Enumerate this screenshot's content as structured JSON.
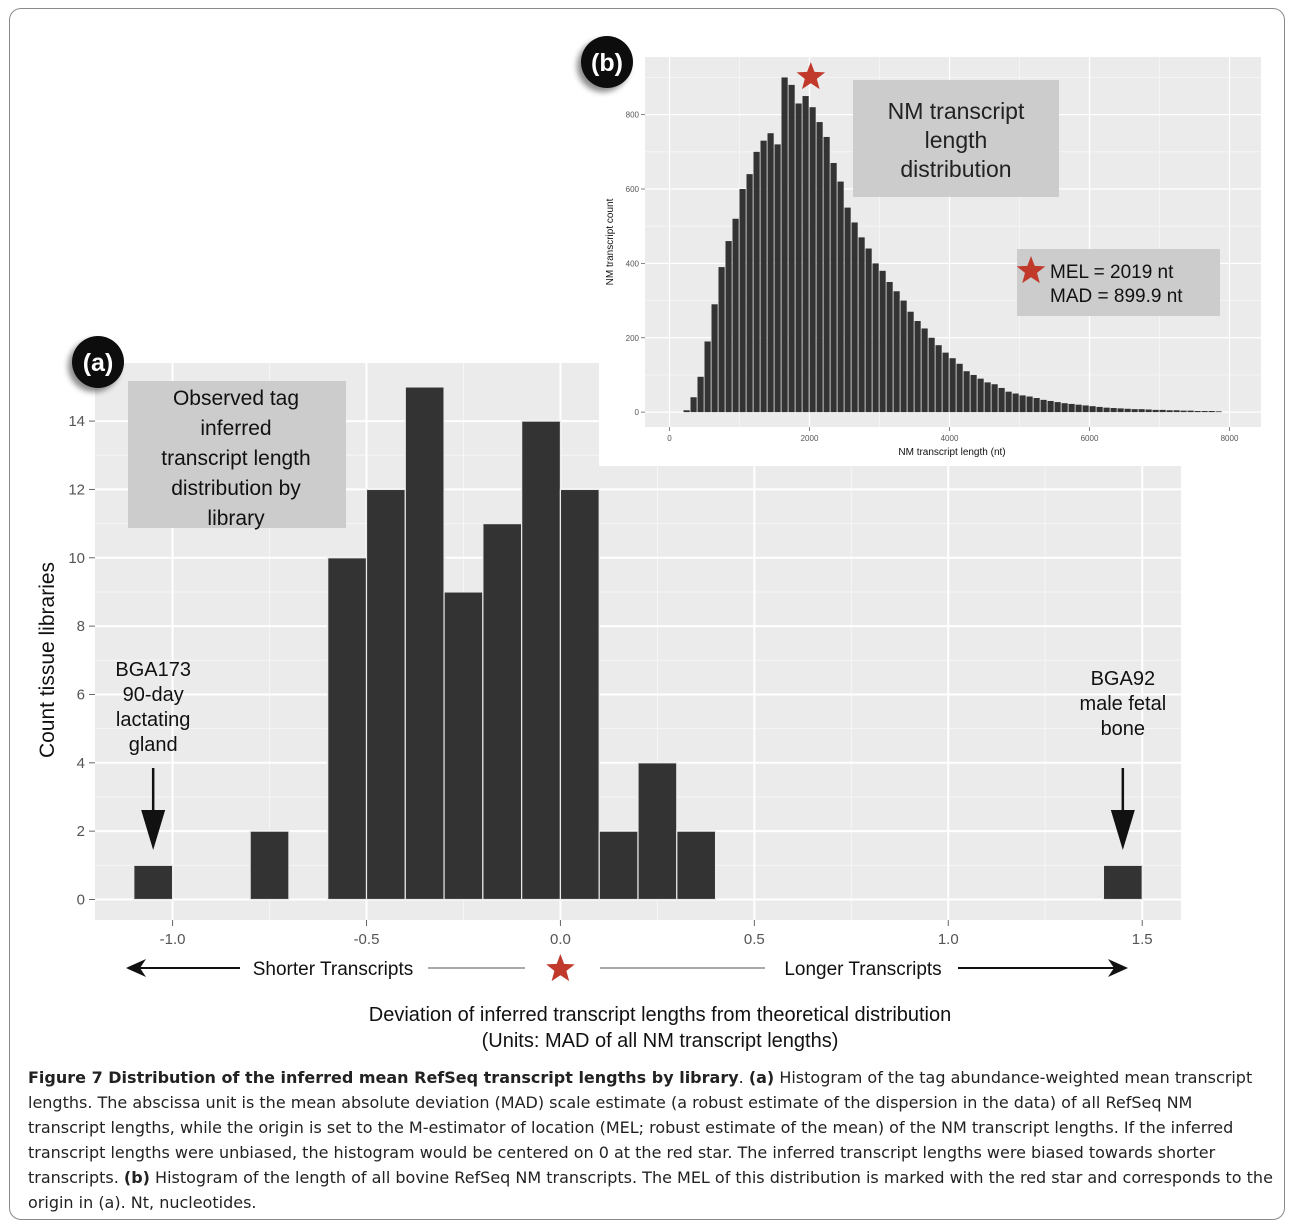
{
  "chart_data": [
    {
      "id": "a",
      "type": "bar",
      "panel_label": "(a)",
      "title": "Observed tag inferred transcript length distribution by library",
      "title_lines": [
        "Observed tag",
        "inferred",
        "transcript length",
        "distribution by",
        "library"
      ],
      "ylabel": "Count tissue libraries",
      "xlabel_lines": [
        "Deviation of inferred transcript lengths from theoretical distribution",
        "(Units: MAD of all NM transcript lengths)"
      ],
      "xlim": [
        -1.2,
        1.6
      ],
      "ylim": [
        -0.6,
        15.7
      ],
      "x_ticks": [
        -1.0,
        -0.5,
        0.0,
        0.5,
        1.0,
        1.5
      ],
      "x_tick_labels": [
        "-1.0",
        "-0.5",
        "0.0",
        "0.5",
        "1.0",
        "1.5"
      ],
      "y_ticks": [
        0,
        2,
        4,
        6,
        8,
        10,
        12,
        14
      ],
      "y_tick_labels": [
        "0",
        "2",
        "4",
        "6",
        "8",
        "10",
        "12",
        "14"
      ],
      "grid": true,
      "bin_width": 0.1,
      "bins": [
        {
          "x0": -1.1,
          "count": 1
        },
        {
          "x0": -0.8,
          "count": 2
        },
        {
          "x0": -0.6,
          "count": 10
        },
        {
          "x0": -0.5,
          "count": 12
        },
        {
          "x0": -0.4,
          "count": 15
        },
        {
          "x0": -0.3,
          "count": 9
        },
        {
          "x0": -0.2,
          "count": 11
        },
        {
          "x0": -0.1,
          "count": 14
        },
        {
          "x0": 0.0,
          "count": 12
        },
        {
          "x0": 0.1,
          "count": 2
        },
        {
          "x0": 0.2,
          "count": 4
        },
        {
          "x0": 0.3,
          "count": 2
        },
        {
          "x0": 1.4,
          "count": 1
        }
      ],
      "annotations": [
        {
          "lines": [
            "BGA173",
            "90-day",
            "lactating",
            "gland"
          ],
          "x": -1.05
        },
        {
          "lines": [
            "BGA92",
            "male fetal",
            "bone"
          ],
          "x": 1.45
        }
      ],
      "direction_left": "Shorter Transcripts",
      "direction_right": "Longer Transcripts"
    },
    {
      "id": "b",
      "type": "bar",
      "panel_label": "(b)",
      "title": "NM transcript length distribution",
      "title_lines": [
        "NM  transcript",
        "length",
        "distribution"
      ],
      "xlabel": "NM transcript length (nt)",
      "ylabel": "NM transcript count",
      "xlim": [
        -350,
        8450
      ],
      "ylim": [
        -40,
        955
      ],
      "x_ticks": [
        0,
        2000,
        4000,
        6000,
        8000
      ],
      "x_tick_labels": [
        "0",
        "2000",
        "4000",
        "6000",
        "8000"
      ],
      "y_ticks": [
        0,
        200,
        400,
        600,
        800
      ],
      "y_tick_labels": [
        "0",
        "200",
        "400",
        "600",
        "800"
      ],
      "grid": true,
      "bin_start": 200,
      "bin_width": 100,
      "counts": [
        5,
        40,
        95,
        190,
        290,
        390,
        460,
        520,
        600,
        640,
        700,
        730,
        750,
        720,
        900,
        880,
        830,
        850,
        820,
        780,
        740,
        670,
        620,
        550,
        510,
        470,
        440,
        400,
        380,
        350,
        325,
        300,
        270,
        245,
        225,
        200,
        180,
        160,
        145,
        130,
        110,
        100,
        90,
        80,
        75,
        65,
        55,
        50,
        45,
        42,
        38,
        33,
        30,
        27,
        24,
        22,
        20,
        18,
        16,
        14,
        12,
        11,
        10,
        9,
        8,
        8,
        7,
        6,
        6,
        5,
        5,
        4,
        4,
        3,
        3,
        3,
        2
      ],
      "stats_lines": [
        "MEL = 2019 nt",
        "MAD = 899.9 nt"
      ],
      "mel": 2019
    }
  ],
  "marker_color": "#c0392b",
  "bar_color": "#333333",
  "panel_bg": "#ebebeb",
  "caption": {
    "title": "Figure 7 Distribution of the inferred mean RefSeq transcript lengths by library",
    "sep": ". ",
    "a_label": "(a)",
    "a_text": " Histogram of the tag abundance-weighted mean transcript lengths. The abscissa unit is the mean absolute deviation (MAD) scale estimate (a robust estimate of the dispersion in the data) of all RefSeq NM transcript lengths, while the origin is set to the M-estimator of location (MEL; robust estimate of the mean) of the NM transcript lengths. If the inferred transcript lengths were unbiased, the histogram would be centered on 0 at the red star. The inferred transcript lengths were biased towards shorter transcripts. ",
    "b_label": "(b)",
    "b_text": " Histogram of the length of all bovine RefSeq NM transcripts. The MEL of this distribution is marked with the red star and corresponds to the origin in (a). Nt, nucleotides."
  }
}
